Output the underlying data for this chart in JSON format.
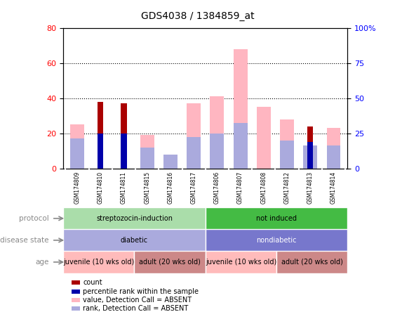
{
  "title": "GDS4038 / 1384859_at",
  "samples": [
    "GSM174809",
    "GSM174810",
    "GSM174811",
    "GSM174815",
    "GSM174816",
    "GSM174817",
    "GSM174806",
    "GSM174807",
    "GSM174808",
    "GSM174812",
    "GSM174813",
    "GSM174814"
  ],
  "value_absent": [
    25,
    0,
    0,
    19,
    0,
    37,
    41,
    68,
    35,
    28,
    0,
    23
  ],
  "rank_absent": [
    17,
    0,
    0,
    12,
    8,
    18,
    20,
    26,
    0,
    16,
    13,
    13
  ],
  "count": [
    0,
    38,
    37,
    0,
    0,
    0,
    0,
    0,
    0,
    0,
    24,
    0
  ],
  "percentile_rank": [
    0,
    20,
    20,
    0,
    0,
    0,
    0,
    0,
    0,
    0,
    15,
    0
  ],
  "ylim_left": [
    0,
    80
  ],
  "ylim_right": [
    0,
    100
  ],
  "yticks_left": [
    0,
    20,
    40,
    60,
    80
  ],
  "yticks_right": [
    0,
    25,
    50,
    75,
    100
  ],
  "color_count": "#AA0000",
  "color_percentile": "#0000AA",
  "color_value_absent": "#FFB6C1",
  "color_rank_absent": "#AAAADD",
  "plot_bg": "#FFFFFF",
  "grid_color": "#000000",
  "protocol_groups": [
    {
      "label": "streptozocin-induction",
      "start": 0,
      "end": 6,
      "color": "#AADDAA"
    },
    {
      "label": "not induced",
      "start": 6,
      "end": 12,
      "color": "#44BB44"
    }
  ],
  "disease_groups": [
    {
      "label": "diabetic",
      "start": 0,
      "end": 6,
      "color": "#AAAADD"
    },
    {
      "label": "nondiabetic",
      "start": 6,
      "end": 12,
      "color": "#7777CC"
    }
  ],
  "age_groups": [
    {
      "label": "juvenile (10 wks old)",
      "start": 0,
      "end": 3,
      "color": "#FFBBBB"
    },
    {
      "label": "adult (20 wks old)",
      "start": 3,
      "end": 6,
      "color": "#CC8888"
    },
    {
      "label": "juvenile (10 wks old)",
      "start": 6,
      "end": 9,
      "color": "#FFBBBB"
    },
    {
      "label": "adult (20 wks old)",
      "start": 9,
      "end": 12,
      "color": "#CC8888"
    }
  ],
  "legend_items": [
    {
      "label": "count",
      "color": "#AA0000"
    },
    {
      "label": "percentile rank within the sample",
      "color": "#0000AA"
    },
    {
      "label": "value, Detection Call = ABSENT",
      "color": "#FFB6C1"
    },
    {
      "label": "rank, Detection Call = ABSENT",
      "color": "#AAAADD"
    }
  ],
  "label_color": "#888888",
  "xtick_bg": "#CCCCCC",
  "xtick_border": "#FFFFFF"
}
